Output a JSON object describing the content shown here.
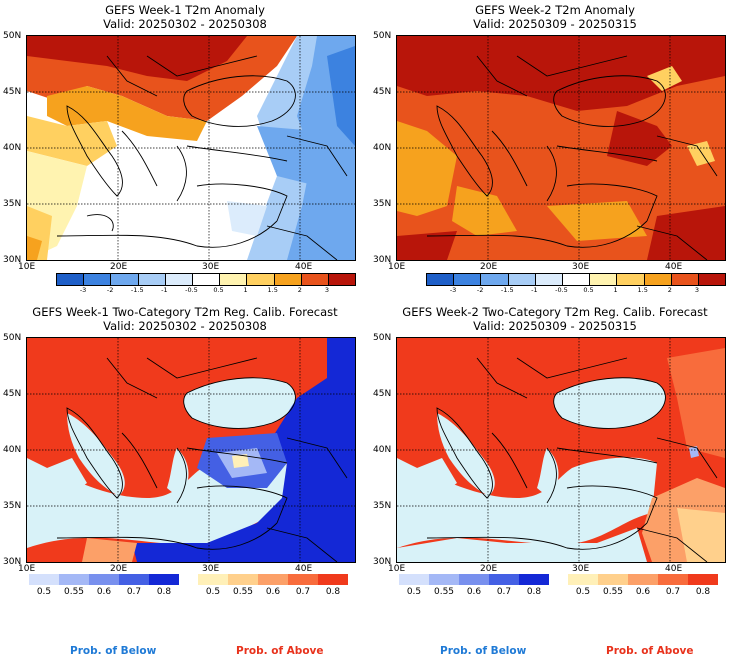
{
  "panels": [
    {
      "title": "GEFS Week-1 T2m Anomaly",
      "valid": "Valid: 20250302 - 20250308"
    },
    {
      "title": "GEFS Week-2 T2m Anomaly",
      "valid": "Valid: 20250309 - 20250315"
    },
    {
      "title": "GEFS Week-1 Two-Category T2m Reg. Calib. Forecast",
      "valid": "Valid: 20250302 - 20250308"
    },
    {
      "title": "GEFS Week-2 Two-Category T2m Reg. Calib. Forecast",
      "valid": "Valid: 20250309 - 20250315"
    }
  ],
  "lat_labels": [
    "50N",
    "45N",
    "40N",
    "35N",
    "30N"
  ],
  "lon_labels": [
    "10E",
    "20E",
    "30E",
    "40E"
  ],
  "anomaly_scale": {
    "labels": [
      "-3",
      "-2",
      "-1.5",
      "-1",
      "-0.5",
      "0.5",
      "1",
      "1.5",
      "2",
      "3"
    ],
    "colors": [
      "#1e5fc8",
      "#3c82e0",
      "#6ea8ee",
      "#a8cdf6",
      "#dcecfc",
      "#ffffff",
      "#fff3b0",
      "#ffd060",
      "#f6a21e",
      "#e8531c",
      "#b8150a"
    ]
  },
  "prob_below": {
    "labels": [
      "0.5",
      "0.55",
      "0.6",
      "0.7",
      "0.8"
    ],
    "colors": [
      "#d4e0fc",
      "#a4b8f6",
      "#7890ee",
      "#4460e4",
      "#1428d6"
    ],
    "caption": "Prob. of Below",
    "caption_color": "#1f7ad6"
  },
  "prob_above": {
    "labels": [
      "0.5",
      "0.55",
      "0.6",
      "0.7",
      "0.8"
    ],
    "colors": [
      "#fff0b8",
      "#ffd08c",
      "#fca068",
      "#f86c3c",
      "#f03a1c"
    ],
    "caption": "Prob. of Above",
    "caption_color": "#e8321c"
  }
}
